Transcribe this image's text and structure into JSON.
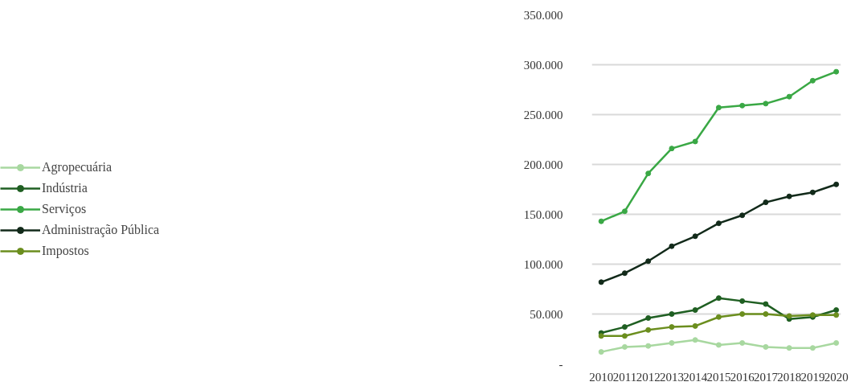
{
  "chart_data": {
    "type": "line",
    "x": [
      2010,
      2011,
      2012,
      2013,
      2014,
      2015,
      2016,
      2017,
      2018,
      2019,
      2020
    ],
    "series": [
      {
        "name": "Agropecuária",
        "color": "#a8d8a0",
        "values": [
          12000,
          17000,
          18000,
          21000,
          24000,
          19000,
          21000,
          17000,
          16000,
          16000,
          21000
        ]
      },
      {
        "name": "Indústria",
        "color": "#1f5f22",
        "values": [
          31000,
          37000,
          46000,
          50000,
          54000,
          66000,
          63000,
          60000,
          45000,
          47000,
          54000
        ]
      },
      {
        "name": "Serviços",
        "color": "#3aa845",
        "values": [
          143000,
          153000,
          191000,
          216000,
          223000,
          257000,
          259000,
          261000,
          268000,
          284000,
          293000
        ]
      },
      {
        "name": "Administração Pública",
        "color": "#122a1a",
        "values": [
          82000,
          91000,
          103000,
          118000,
          128000,
          141000,
          149000,
          162000,
          168000,
          172000,
          180000
        ]
      },
      {
        "name": "Impostos",
        "color": "#6b8e1e",
        "values": [
          28000,
          28000,
          34000,
          37000,
          38000,
          47000,
          50000,
          50000,
          48000,
          49000,
          49000
        ]
      }
    ],
    "xlim": [
      2009.6,
      2020.2
    ],
    "xticks": [
      2010,
      2011,
      2012,
      2013,
      2014,
      2015,
      2016,
      2017,
      2018,
      2019,
      2020
    ],
    "ylim": [
      0,
      350000
    ],
    "yticks": [
      {
        "value": 0,
        "label": "-"
      },
      {
        "value": 50000,
        "label": "50.000"
      },
      {
        "value": 100000,
        "label": "100.000"
      },
      {
        "value": 150000,
        "label": "150.000"
      },
      {
        "value": 200000,
        "label": "200.000"
      },
      {
        "value": 250000,
        "label": "250.000"
      },
      {
        "value": 300000,
        "label": "300.000"
      },
      {
        "value": 350000,
        "label": "350.000"
      }
    ],
    "grid": "y",
    "legend": "left",
    "marker": "circle",
    "line_style": "solid"
  }
}
